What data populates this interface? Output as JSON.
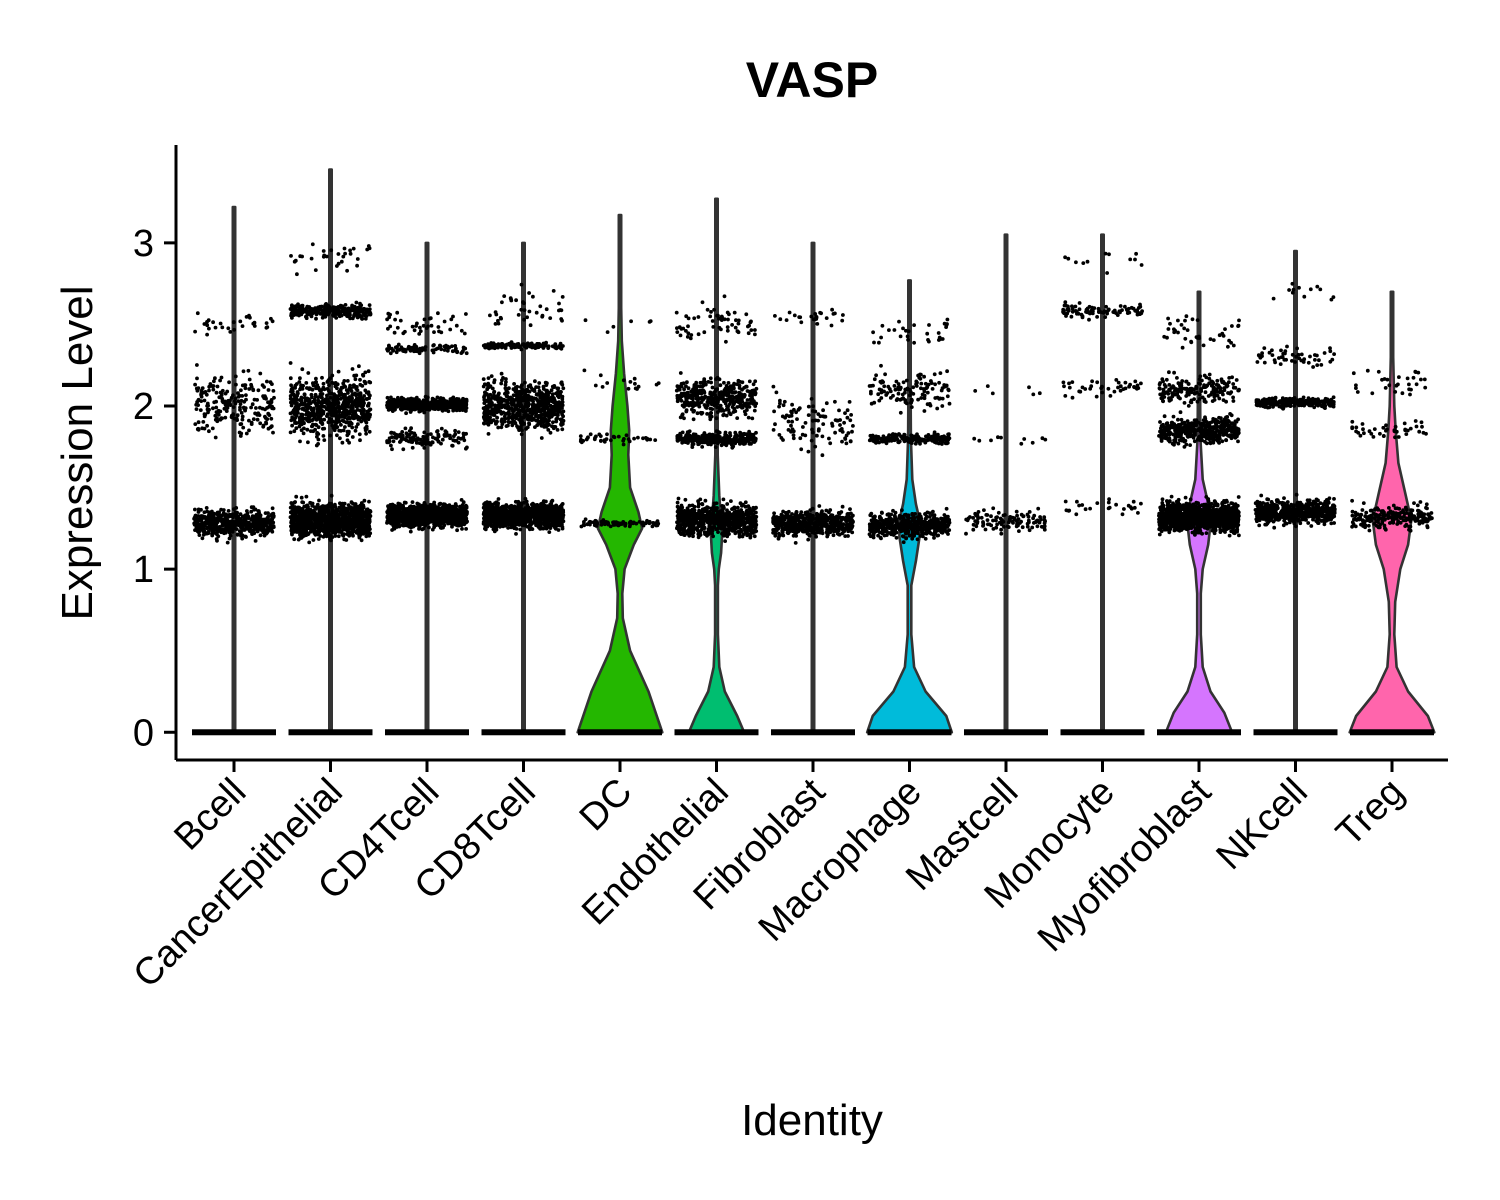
{
  "chart_data": {
    "type": "violin",
    "title": "VASP",
    "xlabel": "Identity",
    "ylabel": "Expression Level",
    "ylim": [
      -0.17,
      3.6
    ],
    "yticks": [
      0,
      1,
      2,
      3
    ],
    "grid": false,
    "legend": "none",
    "categories": [
      {
        "name": "Bcell",
        "color": "#F8766D",
        "max": 3.22,
        "density": [
          [
            0,
            0.01
          ],
          [
            1.3,
            0
          ],
          [
            3.22,
            0
          ]
        ],
        "bands": [
          [
            1.28,
            0.14,
            500
          ],
          [
            2.0,
            0.32,
            220
          ],
          [
            2.5,
            0.12,
            30
          ]
        ]
      },
      {
        "name": "CancerEpithelial",
        "color": "#E18A00",
        "max": 3.45,
        "density": [
          [
            0,
            0.01
          ],
          [
            1.3,
            0
          ],
          [
            3.45,
            0
          ]
        ],
        "bands": [
          [
            1.3,
            0.17,
            1100
          ],
          [
            2.0,
            0.32,
            650
          ],
          [
            2.58,
            0.07,
            280
          ],
          [
            2.9,
            0.15,
            30
          ]
        ]
      },
      {
        "name": "CD4Tcell",
        "color": "#BE9C00",
        "max": 3.0,
        "density": [
          [
            0,
            0.01
          ],
          [
            1.3,
            0
          ],
          [
            3.0,
            0
          ]
        ],
        "bands": [
          [
            1.33,
            0.12,
            1000
          ],
          [
            2.01,
            0.07,
            500
          ],
          [
            2.35,
            0.05,
            80
          ],
          [
            1.8,
            0.1,
            120
          ],
          [
            2.5,
            0.12,
            40
          ]
        ]
      },
      {
        "name": "CD8Tcell",
        "color": "#8CAB00",
        "max": 3.0,
        "density": [
          [
            0,
            0.01
          ],
          [
            1.3,
            0
          ],
          [
            3.0,
            0
          ]
        ],
        "bands": [
          [
            1.33,
            0.13,
            1000
          ],
          [
            2.0,
            0.25,
            650
          ],
          [
            2.37,
            0.03,
            120
          ],
          [
            2.6,
            0.2,
            40
          ]
        ]
      },
      {
        "name": "DC",
        "color": "#24B700",
        "max": 3.17,
        "density": [
          [
            0,
            0.92
          ],
          [
            0.25,
            0.62
          ],
          [
            0.5,
            0.22
          ],
          [
            0.7,
            0.06
          ],
          [
            0.85,
            0.05
          ],
          [
            1.0,
            0.1
          ],
          [
            1.15,
            0.3
          ],
          [
            1.25,
            0.48
          ],
          [
            1.35,
            0.4
          ],
          [
            1.5,
            0.22
          ],
          [
            1.7,
            0.18
          ],
          [
            1.85,
            0.2
          ],
          [
            2.0,
            0.16
          ],
          [
            2.2,
            0.09
          ],
          [
            2.4,
            0.04
          ],
          [
            2.6,
            0.01
          ],
          [
            2.8,
            0.0
          ]
        ],
        "bands": [
          [
            1.28,
            0.04,
            80
          ],
          [
            1.8,
            0.05,
            40
          ],
          [
            2.15,
            0.1,
            15
          ],
          [
            2.5,
            0.1,
            6
          ]
        ]
      },
      {
        "name": "Endothelial",
        "color": "#00BE70",
        "max": 3.27,
        "density": [
          [
            0,
            0.6
          ],
          [
            0.1,
            0.45
          ],
          [
            0.25,
            0.18
          ],
          [
            0.4,
            0.06
          ],
          [
            0.6,
            0.03
          ],
          [
            0.9,
            0.03
          ],
          [
            1.0,
            0.05
          ],
          [
            1.1,
            0.1
          ],
          [
            1.2,
            0.12
          ],
          [
            1.3,
            0.1
          ],
          [
            1.45,
            0.06
          ],
          [
            1.7,
            0.02
          ],
          [
            2.0,
            0.01
          ],
          [
            2.5,
            0.0
          ]
        ],
        "bands": [
          [
            1.3,
            0.16,
            700
          ],
          [
            1.8,
            0.07,
            300
          ],
          [
            2.05,
            0.2,
            350
          ],
          [
            2.5,
            0.2,
            60
          ]
        ]
      },
      {
        "name": "Fibroblast",
        "color": "#00C1AB",
        "max": 3.0,
        "density": [
          [
            0,
            0.01
          ],
          [
            1.3,
            0
          ],
          [
            3.0,
            0
          ]
        ],
        "bands": [
          [
            1.28,
            0.13,
            500
          ],
          [
            1.9,
            0.3,
            100
          ],
          [
            2.55,
            0.07,
            25
          ]
        ]
      },
      {
        "name": "Macrophage",
        "color": "#00BBDA",
        "max": 2.77,
        "density": [
          [
            0,
            0.92
          ],
          [
            0.1,
            0.8
          ],
          [
            0.25,
            0.35
          ],
          [
            0.4,
            0.1
          ],
          [
            0.6,
            0.04
          ],
          [
            0.9,
            0.04
          ],
          [
            1.05,
            0.14
          ],
          [
            1.2,
            0.22
          ],
          [
            1.3,
            0.22
          ],
          [
            1.4,
            0.14
          ],
          [
            1.55,
            0.06
          ],
          [
            1.8,
            0.03
          ],
          [
            2.0,
            0.02
          ],
          [
            2.3,
            0.01
          ],
          [
            2.7,
            0.0
          ]
        ],
        "bands": [
          [
            1.27,
            0.12,
            500
          ],
          [
            1.8,
            0.05,
            200
          ],
          [
            2.1,
            0.2,
            120
          ],
          [
            2.45,
            0.15,
            30
          ]
        ]
      },
      {
        "name": "Mastcell",
        "color": "#00ACFC",
        "max": 3.05,
        "density": [
          [
            0,
            0.01
          ],
          [
            1.3,
            0
          ],
          [
            3.05,
            0
          ]
        ],
        "bands": [
          [
            1.3,
            0.12,
            110
          ],
          [
            1.8,
            0.05,
            10
          ],
          [
            2.1,
            0.08,
            6
          ]
        ]
      },
      {
        "name": "Monocyte",
        "color": "#8B93FF",
        "max": 3.05,
        "density": [
          [
            0,
            0.01
          ],
          [
            1.3,
            0
          ],
          [
            3.05,
            0
          ]
        ],
        "bands": [
          [
            1.38,
            0.1,
            25
          ],
          [
            2.12,
            0.1,
            40
          ],
          [
            2.58,
            0.07,
            90
          ],
          [
            2.9,
            0.12,
            12
          ]
        ]
      },
      {
        "name": "Myofibroblast",
        "color": "#D575FE",
        "max": 2.7,
        "density": [
          [
            0,
            0.72
          ],
          [
            0.12,
            0.55
          ],
          [
            0.25,
            0.25
          ],
          [
            0.4,
            0.08
          ],
          [
            0.6,
            0.04
          ],
          [
            0.85,
            0.04
          ],
          [
            1.0,
            0.08
          ],
          [
            1.15,
            0.2
          ],
          [
            1.3,
            0.26
          ],
          [
            1.4,
            0.2
          ],
          [
            1.55,
            0.08
          ],
          [
            1.8,
            0.03
          ],
          [
            2.0,
            0.02
          ],
          [
            2.3,
            0.01
          ],
          [
            2.7,
            0.0
          ]
        ],
        "bands": [
          [
            1.32,
            0.15,
            1200
          ],
          [
            1.85,
            0.13,
            420
          ],
          [
            2.1,
            0.15,
            180
          ],
          [
            2.45,
            0.15,
            40
          ]
        ]
      },
      {
        "name": "NKcell",
        "color": "#F962DD",
        "max": 2.95,
        "density": [
          [
            0,
            0.01
          ],
          [
            1.3,
            0
          ],
          [
            2.95,
            0
          ]
        ],
        "bands": [
          [
            1.35,
            0.12,
            600
          ],
          [
            2.02,
            0.05,
            250
          ],
          [
            2.3,
            0.12,
            50
          ],
          [
            2.7,
            0.15,
            12
          ]
        ]
      },
      {
        "name": "Treg",
        "color": "#FF65AC",
        "max": 2.7,
        "density": [
          [
            0,
            0.92
          ],
          [
            0.1,
            0.78
          ],
          [
            0.25,
            0.35
          ],
          [
            0.4,
            0.1
          ],
          [
            0.6,
            0.05
          ],
          [
            0.8,
            0.07
          ],
          [
            1.0,
            0.18
          ],
          [
            1.15,
            0.35
          ],
          [
            1.3,
            0.42
          ],
          [
            1.45,
            0.3
          ],
          [
            1.65,
            0.14
          ],
          [
            1.85,
            0.08
          ],
          [
            2.0,
            0.05
          ],
          [
            2.3,
            0.02
          ],
          [
            2.7,
            0.0
          ]
        ],
        "bands": [
          [
            1.32,
            0.12,
            220
          ],
          [
            1.85,
            0.1,
            40
          ],
          [
            2.15,
            0.15,
            30
          ]
        ]
      }
    ]
  }
}
